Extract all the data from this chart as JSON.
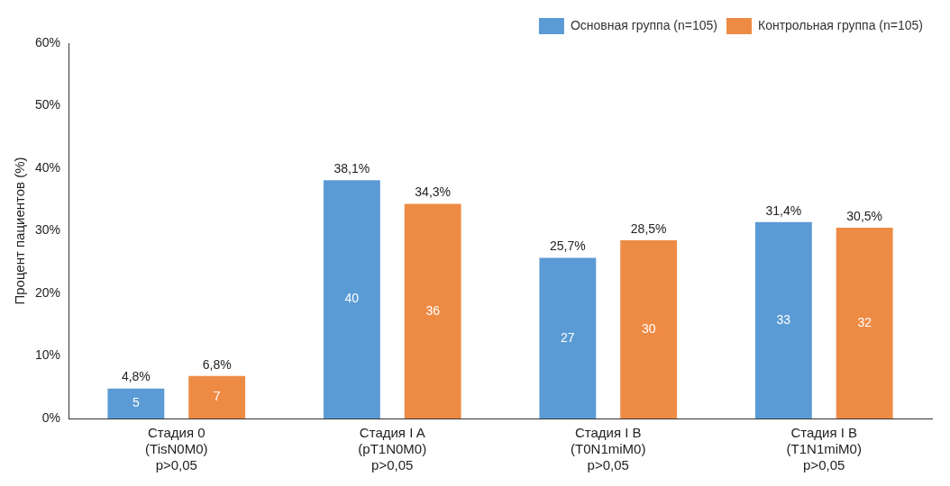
{
  "chart_data": {
    "type": "bar",
    "ylabel": "Процент пациентов (%)",
    "categories": [
      "Стадия 0\n(TisN0M0)\np>0,05",
      "Стадия I A\n(pT1N0M0)\np>0,05",
      "Стадия I B\n(T0N1miM0)\np>0,05",
      "Стадия I B\n(T1N1miM0)\np>0,05"
    ],
    "series": [
      {
        "name": "Основная группа (n=105)",
        "color": "#5b9bd5",
        "values": [
          4.8,
          38.1,
          25.7,
          31.4
        ],
        "value_labels": [
          "4,8%",
          "38,1%",
          "25,7%",
          "31,4%"
        ]
      },
      {
        "name": "Контрольная группа (n=105)",
        "color": "#ed8b45",
        "values": [
          6.8,
          34.3,
          28.5,
          30.5
        ],
        "value_labels": [
          "6,8%",
          "34,3%",
          "28,5%",
          "30,5%"
        ]
      }
    ],
    "ylim": [
      0,
      60
    ],
    "yticks": [
      {
        "value": 0,
        "label": "0%"
      },
      {
        "value": 10,
        "label": "10%"
      },
      {
        "value": 20,
        "label": "20%"
      },
      {
        "value": 30,
        "label": "30%"
      },
      {
        "value": 40,
        "label": "40%"
      },
      {
        "value": 50,
        "label": "50%"
      },
      {
        "value": 60,
        "label": "60%"
      }
    ],
    "grid": false,
    "legend": "top right",
    "annotations": [
      "5",
      "7",
      "40",
      "36",
      "27",
      "30",
      "33",
      "32"
    ]
  }
}
